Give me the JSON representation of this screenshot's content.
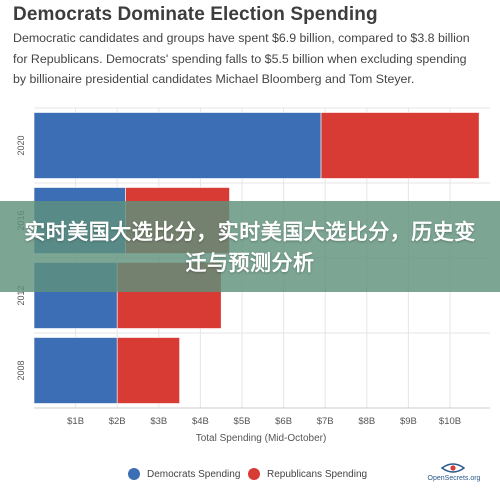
{
  "header": {
    "title": "Democrats Dominate Election Spending",
    "subtitle": "Democratic candidates and groups have spent $6.9 billion, compared to $3.8 billion for Republicans. Democrats' spending falls to $5.5 billion when excluding spending by billionaire presidential candidates Michael Bloomberg and Tom Steyer."
  },
  "overlay": {
    "text": "实时美国大选比分，实时美国大选比分，历史变迁与预测分析"
  },
  "logo": {
    "text": "OpenSecrets.org",
    "icon": "eye-icon"
  },
  "colors": {
    "democrats": "#3b6eb5",
    "republicans": "#d83b34",
    "grid": "#e5e5e5",
    "plot_bg": "#ffffff"
  },
  "chart_data": {
    "type": "bar",
    "orientation": "horizontal",
    "stacked": true,
    "title": "Democrats Dominate Election Spending",
    "xlabel": "Total Spending (Mid-October)",
    "ylabel": "",
    "categories": [
      "2020",
      "2016",
      "2012",
      "2008"
    ],
    "series": [
      {
        "name": "Democrats Spending",
        "color": "#3b6eb5",
        "values": [
          6.9,
          2.2,
          2.0,
          2.0
        ]
      },
      {
        "name": "Republicans Spending",
        "color": "#d83b34",
        "values": [
          3.8,
          2.5,
          2.5,
          1.5
        ]
      }
    ],
    "xlim": [
      0,
      11
    ],
    "xticks": [
      1,
      2,
      3,
      4,
      5,
      6,
      7,
      8,
      9,
      10
    ],
    "xtick_labels": [
      "$1B",
      "$2B",
      "$3B",
      "$4B",
      "$5B",
      "$6B",
      "$7B",
      "$8B",
      "$9B",
      "$10B"
    ],
    "grid": true,
    "legend_position": "bottom"
  }
}
